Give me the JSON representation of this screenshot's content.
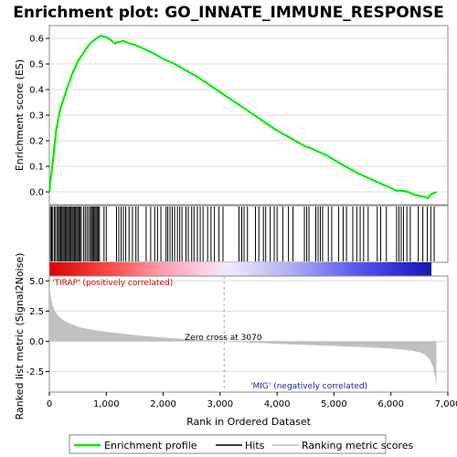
{
  "chart_data": {
    "type": "line",
    "title": "Enrichment plot: GO_INNATE_IMMUNE_RESPONSE",
    "colors": {
      "es_line": "#00ee00",
      "hits": "#000000",
      "metric_fill": "#c0c0c0",
      "positive_text": "#cc0000",
      "negative_text": "#1a1aaa",
      "zero_cross_line": "#aaaaaa"
    },
    "es_panel": {
      "ylabel": "Enrichment score (ES)",
      "ylim": [
        -0.05,
        0.65
      ],
      "yticks": [
        "0.0",
        "0.1",
        "0.2",
        "0.3",
        "0.4",
        "0.5",
        "0.6"
      ],
      "series": [
        {
          "name": "Enrichment profile",
          "x": [
            0,
            40,
            80,
            120,
            160,
            200,
            260,
            320,
            380,
            440,
            500,
            560,
            620,
            680,
            740,
            800,
            860,
            900,
            1000,
            1100,
            1150,
            1200,
            1300,
            1400,
            1500,
            1600,
            1800,
            2000,
            2200,
            2400,
            2600,
            2800,
            3000,
            3200,
            3400,
            3600,
            3800,
            4000,
            4200,
            4400,
            4500,
            4600,
            4700,
            4800,
            4900,
            5000,
            5200,
            5400,
            5600,
            5800,
            6000,
            6100,
            6200,
            6300,
            6400,
            6500,
            6600,
            6650,
            6700,
            6800
          ],
          "values": [
            0.0,
            0.08,
            0.16,
            0.24,
            0.29,
            0.33,
            0.37,
            0.41,
            0.45,
            0.48,
            0.51,
            0.53,
            0.55,
            0.57,
            0.585,
            0.595,
            0.605,
            0.61,
            0.605,
            0.59,
            0.58,
            0.585,
            0.59,
            0.58,
            0.575,
            0.565,
            0.545,
            0.52,
            0.5,
            0.475,
            0.45,
            0.42,
            0.39,
            0.36,
            0.33,
            0.3,
            0.27,
            0.24,
            0.215,
            0.19,
            0.178,
            0.17,
            0.16,
            0.15,
            0.14,
            0.125,
            0.1,
            0.075,
            0.055,
            0.035,
            0.015,
            0.005,
            0.005,
            0.0,
            -0.01,
            -0.015,
            -0.02,
            -0.025,
            -0.01,
            0.0
          ]
        }
      ]
    },
    "hits": {
      "positions": [
        20,
        40,
        60,
        90,
        110,
        140,
        160,
        180,
        200,
        220,
        240,
        260,
        280,
        300,
        320,
        340,
        360,
        380,
        400,
        420,
        440,
        460,
        480,
        500,
        520,
        540,
        560,
        600,
        630,
        660,
        690,
        720,
        740,
        760,
        780,
        800,
        820,
        840,
        860,
        880,
        960,
        1000,
        1180,
        1220,
        1260,
        1300,
        1340,
        1400,
        1460,
        1520,
        1560,
        1700,
        1780,
        1850,
        1900,
        1960,
        2050,
        2080,
        2120,
        2160,
        2200,
        2250,
        2290,
        2330,
        2400,
        2440,
        2500,
        2540,
        2600,
        2650,
        2700,
        2780,
        2840,
        2900,
        2980,
        3050,
        3330,
        3380,
        3420,
        3480,
        3620,
        3680,
        3760,
        3800,
        3880,
        3950,
        4000,
        4100,
        4200,
        4280,
        4480,
        4520,
        4560,
        4680,
        4720,
        4760,
        4800,
        4900,
        4960,
        5080,
        5160,
        5220,
        5330,
        5400,
        5460,
        5520,
        5600,
        5760,
        5820,
        5920,
        6100,
        6140,
        6180,
        6220,
        6280,
        6340,
        6480,
        6560,
        6640,
        6700,
        6760
      ]
    },
    "rank_panel": {
      "ylabel": "Ranked list metric (Signal2Noise)",
      "ylim": [
        -4.2,
        5.4
      ],
      "yticks": [
        "5.0",
        "2.5",
        "0.0",
        "-2.5"
      ],
      "x": [
        0,
        20,
        50,
        100,
        150,
        200,
        300,
        400,
        500,
        700,
        900,
        1200,
        1500,
        2000,
        2500,
        3070,
        3500,
        4000,
        4500,
        5000,
        5500,
        6000,
        6300,
        6500,
        6600,
        6680,
        6740,
        6780,
        6800
      ],
      "values": [
        4.6,
        3.9,
        3.1,
        2.5,
        2.15,
        1.9,
        1.6,
        1.4,
        1.2,
        1.0,
        0.85,
        0.68,
        0.52,
        0.32,
        0.15,
        0.0,
        -0.1,
        -0.2,
        -0.3,
        -0.38,
        -0.48,
        -0.6,
        -0.72,
        -0.9,
        -1.1,
        -1.5,
        -2.1,
        -3.0,
        -3.9
      ]
    },
    "xlabel": "Rank in Ordered Dataset",
    "xlim": [
      0,
      7000
    ],
    "xticks": [
      "0",
      "1,000",
      "2,000",
      "3,000",
      "4,000",
      "5,000",
      "6,000",
      "7,000"
    ],
    "annotations": {
      "positive": "'TIRAP' (positively correlated)",
      "negative": "'MIG' (negatively correlated)",
      "zero_cross": "Zero cross at 3070",
      "zero_cross_at": 3070
    },
    "legend": {
      "placement": "bottom",
      "items": [
        "Enrichment profile",
        "Hits",
        "Ranking metric scores"
      ]
    }
  }
}
